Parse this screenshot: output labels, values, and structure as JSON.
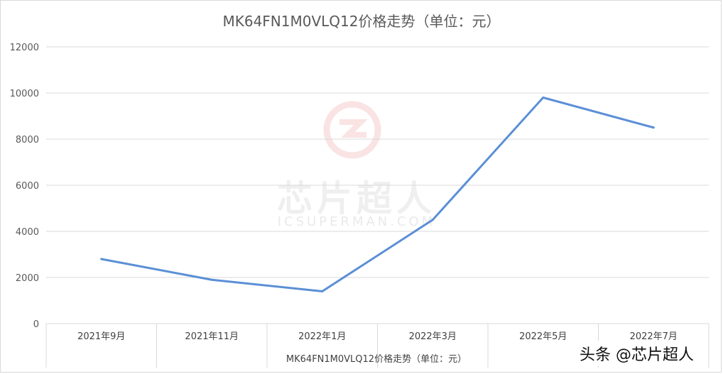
{
  "chart_data": {
    "type": "line",
    "title": "MK64FN1M0VLQ12价格走势（单位：元）",
    "categories": [
      "2021年9月",
      "2021年11月",
      "2022年1月",
      "2022年3月",
      "2022年5月",
      "2022年7月"
    ],
    "series": [
      {
        "name": "MK64FN1M0VLQ12价格走势（单位：元）",
        "values": [
          2800,
          1900,
          1400,
          4500,
          9800,
          8500
        ],
        "color": "#5b8fd6"
      }
    ],
    "ylim": [
      0,
      12000
    ],
    "yticks": [
      0,
      2000,
      4000,
      6000,
      8000,
      10000,
      12000
    ],
    "grid": true,
    "legend_position": "bottom"
  },
  "watermark": {
    "text": "芯片超人",
    "subtext": "ICSUPERMAN.COM"
  },
  "credit": "头条 @芯片超人"
}
